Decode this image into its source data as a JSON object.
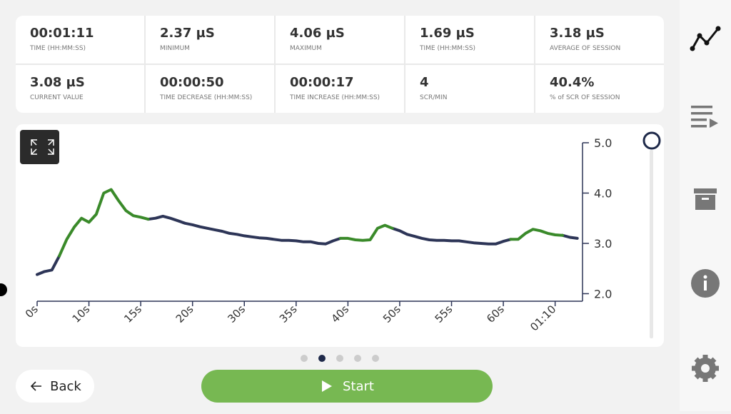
{
  "stats": [
    {
      "value": "00:01:11",
      "label": "TIME (HH:MM:SS)"
    },
    {
      "value": "2.37 µS",
      "label": "MINIMUM"
    },
    {
      "value": "4.06 µS",
      "label": "MAXIMUM"
    },
    {
      "value": "1.69 µS",
      "label": "TIME (HH:MM:SS)"
    },
    {
      "value": "3.18 µS",
      "label": "AVERAGE OF SESSION"
    },
    {
      "value": "3.08 µS",
      "label": "CURRENT VALUE"
    },
    {
      "value": "00:00:50",
      "label": "TIME DECREASE (HH:MM:SS)"
    },
    {
      "value": "00:00:17",
      "label": "TIME INCREASE (HH:MM:SS)"
    },
    {
      "value": "4",
      "label": "SCR/MIN"
    },
    {
      "value": "40.4%",
      "label": "% of SCR OF SESSION"
    }
  ],
  "chart_data": {
    "type": "line",
    "x": [
      0,
      1,
      2,
      3,
      4,
      5,
      6,
      7,
      8,
      9,
      10,
      11,
      12,
      13,
      14,
      15,
      16,
      17,
      18,
      19,
      20,
      21,
      22,
      23,
      24,
      25,
      26,
      27,
      28,
      29,
      30,
      31,
      32,
      33,
      34,
      35,
      36,
      37,
      38,
      39,
      40,
      41,
      42,
      43,
      44,
      45,
      46,
      47,
      48,
      49,
      50,
      51,
      52,
      53,
      54,
      55,
      56,
      57,
      58,
      59,
      60,
      61,
      62,
      63,
      64,
      65,
      66,
      67,
      68,
      69,
      70,
      71,
      72,
      73
    ],
    "series": [
      {
        "color": "#2d3557",
        "values": [
          2.38,
          2.44,
          2.47,
          2.75,
          null,
          null,
          null,
          null,
          null,
          null,
          null,
          null,
          null,
          null,
          null,
          3.48,
          3.5,
          3.54,
          3.5,
          3.45,
          3.4,
          3.37,
          3.33,
          3.3,
          3.27,
          3.24,
          3.2,
          3.18,
          3.15,
          3.13,
          3.11,
          3.1,
          3.08,
          3.06,
          3.06,
          3.05,
          3.03,
          3.03,
          3.0,
          2.99,
          3.05,
          3.1,
          null,
          null,
          null,
          null,
          null,
          null,
          3.3,
          3.25,
          3.18,
          3.14,
          3.1,
          3.07,
          3.06,
          3.06,
          3.05,
          3.05,
          3.03,
          3.01,
          3.0,
          2.99,
          2.99,
          3.04,
          3.08,
          null,
          null,
          null,
          null,
          null,
          null,
          3.16,
          3.12,
          3.1
        ]
      },
      {
        "color": "#3a8a2a",
        "values": [
          null,
          null,
          null,
          2.75,
          3.08,
          3.32,
          3.5,
          3.42,
          3.58,
          4.0,
          4.07,
          3.85,
          3.65,
          3.55,
          3.52,
          3.48,
          null,
          null,
          null,
          null,
          null,
          null,
          null,
          null,
          null,
          null,
          null,
          null,
          null,
          null,
          null,
          null,
          null,
          null,
          null,
          null,
          null,
          null,
          null,
          null,
          null,
          3.1,
          3.1,
          3.07,
          3.06,
          3.07,
          3.3,
          3.36,
          3.3,
          null,
          null,
          null,
          null,
          null,
          null,
          null,
          null,
          null,
          null,
          null,
          null,
          null,
          null,
          null,
          3.08,
          3.08,
          3.2,
          3.28,
          3.25,
          3.2,
          3.17,
          3.16,
          null,
          null
        ]
      }
    ],
    "xlim": [
      0,
      73.7
    ],
    "xticks": [
      {
        "value": 0,
        "label": "0s"
      },
      {
        "value": 7,
        "label": "10s"
      },
      {
        "value": 14,
        "label": "15s"
      },
      {
        "value": 21,
        "label": "20s"
      },
      {
        "value": 28,
        "label": "30s"
      },
      {
        "value": 35,
        "label": "35s"
      },
      {
        "value": 42,
        "label": "40s"
      },
      {
        "value": 49,
        "label": "50s"
      },
      {
        "value": 56,
        "label": "55s"
      },
      {
        "value": 63,
        "label": "60s"
      },
      {
        "value": 70,
        "label": "01:10"
      }
    ],
    "ylim": [
      1.85,
      5.0
    ],
    "yticks": [
      {
        "value": 2,
        "label": "2.0"
      },
      {
        "value": 3,
        "label": "3.0"
      },
      {
        "value": 4,
        "label": "4.0"
      },
      {
        "value": 5,
        "label": "5.0"
      }
    ]
  },
  "buttons": {
    "back": "Back",
    "start": "Start"
  }
}
